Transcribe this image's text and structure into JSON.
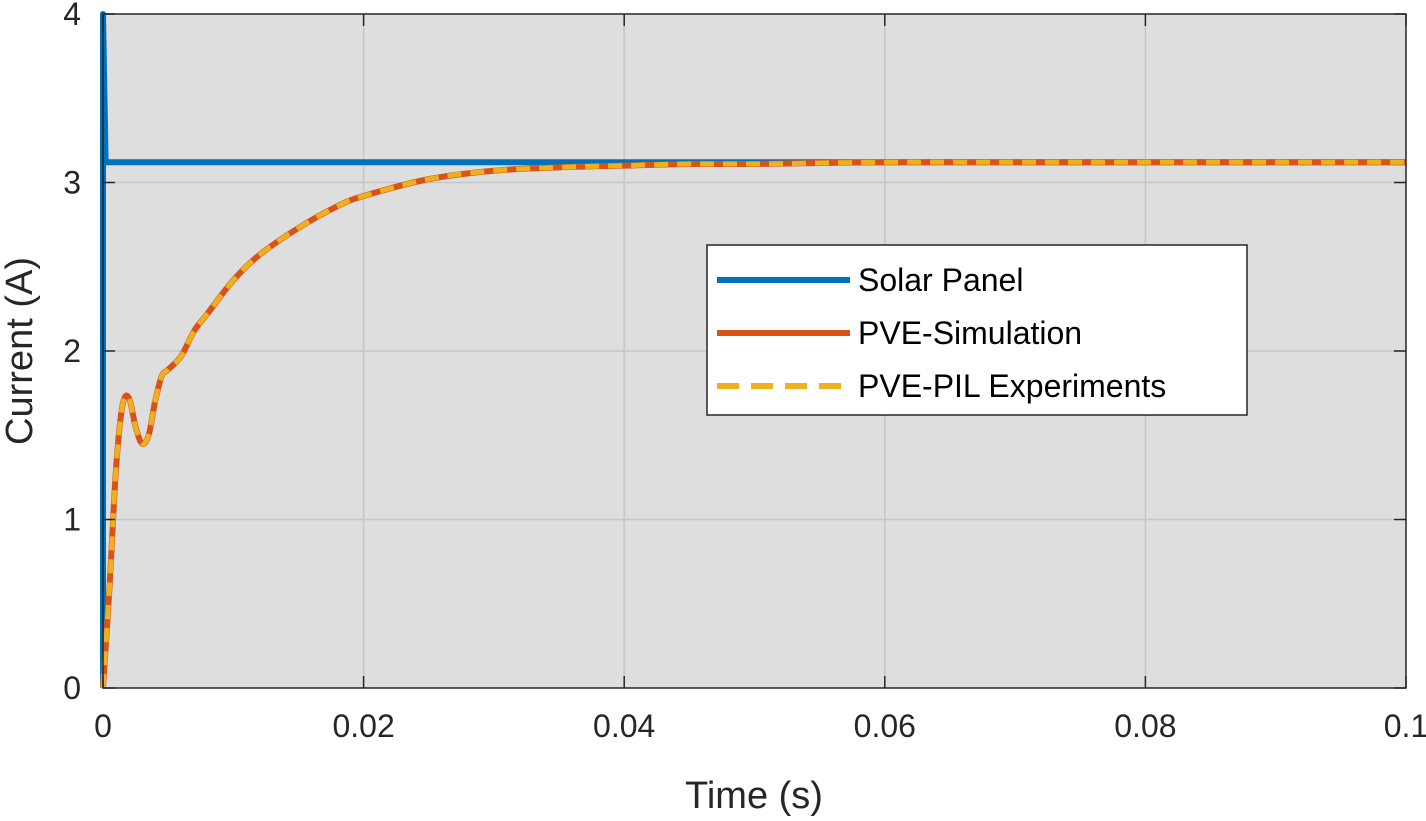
{
  "chart_data": {
    "type": "line",
    "title": "",
    "xlabel": "Time (s)",
    "ylabel": "Current (A)",
    "xlim": [
      0,
      0.1
    ],
    "ylim": [
      0,
      4
    ],
    "x_ticks": [
      0,
      0.02,
      0.04,
      0.06,
      0.08,
      0.1
    ],
    "x_tick_labels": [
      "0",
      "0.02",
      "0.04",
      "0.06",
      "0.08",
      "0.1"
    ],
    "y_ticks": [
      0,
      1,
      2,
      3,
      4
    ],
    "y_tick_labels": [
      "0",
      "1",
      "2",
      "3",
      "4"
    ],
    "grid": true,
    "legend_position": "center-right",
    "colors": {
      "plot_background": "#dedede",
      "grid": "#c6c6c6",
      "axis": "#262626"
    },
    "series": [
      {
        "name": "Solar Panel",
        "color": "#0072BD",
        "style": "solid",
        "x": [
          0,
          0,
          0.0002,
          0.1
        ],
        "y": [
          0,
          4,
          3.12,
          3.12
        ]
      },
      {
        "name": "PVE-Simulation",
        "color": "#D95319",
        "style": "solid",
        "x": [
          0,
          0.0005,
          0.001,
          0.0015,
          0.002,
          0.0025,
          0.003,
          0.0035,
          0.004,
          0.0045,
          0.005,
          0.006,
          0.007,
          0.008,
          0.01,
          0.012,
          0.015,
          0.018,
          0.02,
          0.025,
          0.03,
          0.035,
          0.04,
          0.045,
          0.05,
          0.06,
          0.07,
          0.08,
          0.09,
          0.1
        ],
        "y": [
          0,
          0.6,
          1.3,
          1.68,
          1.72,
          1.55,
          1.45,
          1.5,
          1.7,
          1.85,
          1.89,
          1.97,
          2.12,
          2.22,
          2.42,
          2.57,
          2.73,
          2.86,
          2.92,
          3.02,
          3.07,
          3.09,
          3.1,
          3.11,
          3.11,
          3.12,
          3.12,
          3.12,
          3.12,
          3.12
        ]
      },
      {
        "name": "PVE-PIL Experiments",
        "color": "#EDB120",
        "style": "dashed",
        "x": [
          0,
          0.0005,
          0.001,
          0.0015,
          0.002,
          0.0025,
          0.003,
          0.0035,
          0.004,
          0.0045,
          0.005,
          0.006,
          0.007,
          0.008,
          0.01,
          0.012,
          0.015,
          0.018,
          0.02,
          0.025,
          0.03,
          0.035,
          0.04,
          0.045,
          0.05,
          0.06,
          0.07,
          0.08,
          0.09,
          0.1
        ],
        "y": [
          0,
          0.6,
          1.3,
          1.68,
          1.72,
          1.55,
          1.45,
          1.5,
          1.7,
          1.85,
          1.89,
          1.97,
          2.12,
          2.22,
          2.42,
          2.57,
          2.73,
          2.86,
          2.92,
          3.02,
          3.07,
          3.09,
          3.1,
          3.11,
          3.11,
          3.12,
          3.12,
          3.12,
          3.12,
          3.12
        ]
      }
    ]
  }
}
